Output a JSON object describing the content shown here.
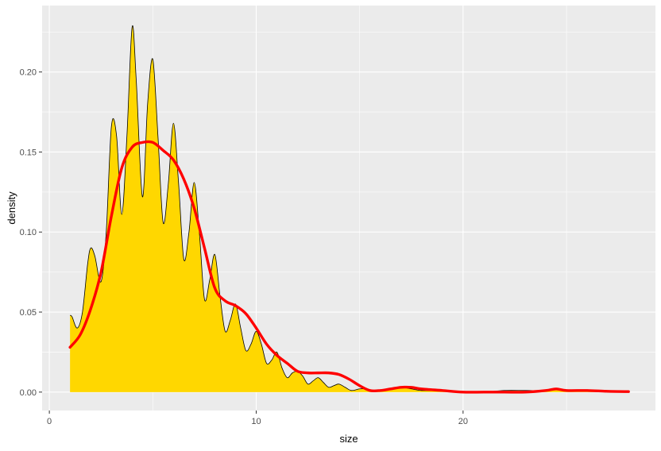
{
  "chart_data": {
    "type": "area",
    "title": "",
    "xlabel": "size",
    "ylabel": "density",
    "xlim": [
      -0.35,
      29.3
    ],
    "ylim": [
      -0.0115,
      0.2415
    ],
    "x_ticks": [
      0,
      10,
      20
    ],
    "x_tick_labels": [
      "0",
      "10",
      "20"
    ],
    "y_ticks": [
      0,
      0.05,
      0.1,
      0.15,
      0.2
    ],
    "y_tick_labels": [
      "0.00",
      "0.05",
      "0.10",
      "0.15",
      "0.20"
    ],
    "grid": true,
    "legend": "none",
    "series": [
      {
        "geom": "density-area",
        "fill": "#FFD700",
        "outline": "#000000",
        "x": [
          1.0,
          1.1,
          1.35,
          1.6,
          1.85,
          2.0,
          2.2,
          2.5,
          2.75,
          3.0,
          3.25,
          3.5,
          3.75,
          4.0,
          4.2,
          4.5,
          4.75,
          5.0,
          5.25,
          5.5,
          5.75,
          6.0,
          6.25,
          6.5,
          6.75,
          7.0,
          7.25,
          7.5,
          7.75,
          8.0,
          8.25,
          8.5,
          8.75,
          9.0,
          9.25,
          9.5,
          9.75,
          10.0,
          10.25,
          10.5,
          10.75,
          11.0,
          11.25,
          11.5,
          11.75,
          12.0,
          12.25,
          12.5,
          12.75,
          13.0,
          13.25,
          13.5,
          13.75,
          14.0,
          14.3,
          14.6,
          15.0,
          15.3,
          15.6,
          16.0,
          16.5,
          17.0,
          17.5,
          18.0,
          19.0,
          20.0,
          21.0,
          22.0,
          23.0,
          24.0,
          24.5,
          25.0,
          26.0,
          27.0,
          28.0
        ],
        "y": [
          0.048,
          0.047,
          0.04,
          0.05,
          0.08,
          0.09,
          0.085,
          0.069,
          0.1,
          0.166,
          0.16,
          0.111,
          0.16,
          0.228,
          0.195,
          0.122,
          0.18,
          0.208,
          0.16,
          0.106,
          0.13,
          0.168,
          0.13,
          0.083,
          0.1,
          0.131,
          0.1,
          0.058,
          0.07,
          0.086,
          0.06,
          0.038,
          0.045,
          0.055,
          0.04,
          0.026,
          0.03,
          0.038,
          0.03,
          0.018,
          0.02,
          0.025,
          0.015,
          0.009,
          0.012,
          0.013,
          0.01,
          0.005,
          0.007,
          0.009,
          0.006,
          0.003,
          0.004,
          0.005,
          0.003,
          0.001,
          0.002,
          0.002,
          0.001,
          0.001,
          0.002,
          0.003,
          0.002,
          0.001,
          0.001,
          0.0,
          0.0,
          0.001,
          0.001,
          0.001,
          0.002,
          0.001,
          0.001,
          0.0005,
          0.0003
        ]
      },
      {
        "geom": "smooth-line",
        "color": "#FF0000",
        "x": [
          1.0,
          1.5,
          2.0,
          2.5,
          3.0,
          3.5,
          4.0,
          4.5,
          5.0,
          5.5,
          6.0,
          6.5,
          7.0,
          7.5,
          8.0,
          8.5,
          9.0,
          9.5,
          10.0,
          10.5,
          11.0,
          11.5,
          12.0,
          12.5,
          13.0,
          13.5,
          14.0,
          14.5,
          15.0,
          15.5,
          16.0,
          16.5,
          17.0,
          17.5,
          18.0,
          19.0,
          20.0,
          21.0,
          22.0,
          23.0,
          24.0,
          24.5,
          25.0,
          26.0,
          27.0,
          28.0
        ],
        "y": [
          0.028,
          0.036,
          0.052,
          0.075,
          0.11,
          0.14,
          0.153,
          0.156,
          0.156,
          0.151,
          0.145,
          0.133,
          0.115,
          0.09,
          0.065,
          0.057,
          0.054,
          0.049,
          0.04,
          0.03,
          0.023,
          0.018,
          0.013,
          0.012,
          0.012,
          0.012,
          0.011,
          0.008,
          0.004,
          0.001,
          0.001,
          0.002,
          0.003,
          0.003,
          0.002,
          0.001,
          0.0,
          0.0,
          0.0,
          0.0,
          0.001,
          0.002,
          0.001,
          0.001,
          0.0005,
          0.0003
        ]
      }
    ]
  }
}
